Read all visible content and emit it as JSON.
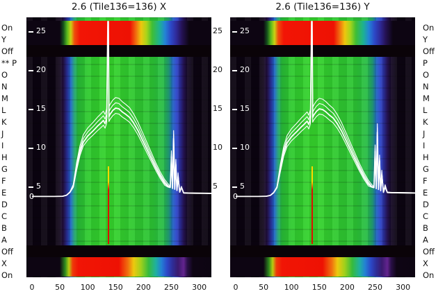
{
  "left_channel_labels": [
    "On",
    "Y",
    "Off",
    "** P",
    "O",
    "N",
    "M",
    "L",
    "K",
    "J",
    "I",
    "H",
    "G",
    "F",
    "E",
    "D",
    "C",
    "B",
    "A",
    "Off",
    "X",
    "On"
  ],
  "right_channel_labels": [
    "On",
    "Y",
    "Off",
    "P",
    "O",
    "N",
    "M",
    "L",
    "K",
    "J",
    "I",
    "H",
    "G",
    "F",
    "E",
    "D",
    "C",
    "B",
    "A",
    "Off",
    "X",
    "On"
  ],
  "y_axis": {
    "ticks": [
      25,
      20,
      15,
      10,
      5
    ],
    "zero": "0"
  },
  "mid_axis_ticks": [
    25,
    20,
    15,
    10,
    5
  ],
  "heatmap_style": {
    "off_color": "#0a0308",
    "background": "#0b0310",
    "curve_color": "#ffffff",
    "marker_line": {
      "x": 137,
      "color_top": "#ffd700",
      "color_bottom": "#dd1000"
    },
    "main_gradient": [
      {
        "p": 0,
        "c": "#0b0310"
      },
      {
        "p": 15,
        "c": "#0b0310"
      },
      {
        "p": 18,
        "c": "#150a1e"
      },
      {
        "p": 20,
        "c": "#221042"
      },
      {
        "p": 22,
        "c": "#2a2f9a"
      },
      {
        "p": 24,
        "c": "#2068c8"
      },
      {
        "p": 26,
        "c": "#20a470"
      },
      {
        "p": 28,
        "c": "#28bb38"
      },
      {
        "p": 33,
        "c": "#2fca2f"
      },
      {
        "p": 45,
        "c": "#36d42c"
      },
      {
        "p": 58,
        "c": "#30c930"
      },
      {
        "p": 68,
        "c": "#2cc434"
      },
      {
        "p": 74,
        "c": "#28bd46"
      },
      {
        "p": 77,
        "c": "#219f78"
      },
      {
        "p": 79,
        "c": "#2166c0"
      },
      {
        "p": 81,
        "c": "#2a46cc"
      },
      {
        "p": 83,
        "c": "#2c2f9e"
      },
      {
        "p": 85,
        "c": "#261356"
      },
      {
        "p": 87,
        "c": "#150926"
      },
      {
        "p": 90,
        "c": "#0c0412"
      },
      {
        "p": 100,
        "c": "#0b0310"
      }
    ],
    "top_gradient": [
      {
        "p": 0,
        "c": "#0d0512"
      },
      {
        "p": 18,
        "c": "#0d0512"
      },
      {
        "p": 20,
        "c": "#14511c"
      },
      {
        "p": 22,
        "c": "#57b81e"
      },
      {
        "p": 24,
        "c": "#c8d414"
      },
      {
        "p": 26,
        "c": "#ef4c0c"
      },
      {
        "p": 29,
        "c": "#f21505"
      },
      {
        "p": 56,
        "c": "#ee1103"
      },
      {
        "p": 59,
        "c": "#f1660e"
      },
      {
        "p": 62,
        "c": "#eec60e"
      },
      {
        "p": 65,
        "c": "#a8d41a"
      },
      {
        "p": 68,
        "c": "#3fbe34"
      },
      {
        "p": 72,
        "c": "#1cb292"
      },
      {
        "p": 75,
        "c": "#2383d6"
      },
      {
        "p": 78,
        "c": "#2c49c8"
      },
      {
        "p": 81,
        "c": "#2f2a9a"
      },
      {
        "p": 84,
        "c": "#251255"
      },
      {
        "p": 88,
        "c": "#0d0512"
      },
      {
        "p": 100,
        "c": "#0d0512"
      }
    ],
    "bottom_gradient": [
      {
        "p": 0,
        "c": "#0d0512"
      },
      {
        "p": 18,
        "c": "#0d0512"
      },
      {
        "p": 21,
        "c": "#2f8c1e"
      },
      {
        "p": 23,
        "c": "#b8cc12"
      },
      {
        "p": 25,
        "c": "#ee3a0a"
      },
      {
        "p": 28,
        "c": "#f11505"
      },
      {
        "p": 50,
        "c": "#ee1103"
      },
      {
        "p": 55,
        "c": "#f0720e"
      },
      {
        "p": 58,
        "c": "#edc90e"
      },
      {
        "p": 62,
        "c": "#9ed01c"
      },
      {
        "p": 66,
        "c": "#37bb3c"
      },
      {
        "p": 70,
        "c": "#1fb0a0"
      },
      {
        "p": 73,
        "c": "#2380d4"
      },
      {
        "p": 76,
        "c": "#2c49c8"
      },
      {
        "p": 79,
        "c": "#2e2d97"
      },
      {
        "p": 82,
        "c": "#3a1a6e"
      },
      {
        "p": 85,
        "c": "#63248e"
      },
      {
        "p": 87,
        "c": "#2a1048"
      },
      {
        "p": 90,
        "c": "#0e0514"
      },
      {
        "p": 100,
        "c": "#0d0512"
      }
    ]
  },
  "chart_data": [
    {
      "type": "heatmap",
      "title": "2.6 (Tile136=136) X",
      "colormap": "rainbow",
      "x_range": [
        0,
        322
      ],
      "x_ticks": [
        0,
        50,
        100,
        150,
        200,
        250,
        300
      ],
      "y_ticks_shown": [
        0,
        5,
        10,
        15,
        20,
        25
      ],
      "row_labels_top_to_bottom": [
        "On",
        "Y",
        "Off",
        "P",
        "O",
        "N",
        "M",
        "L",
        "K",
        "J",
        "I",
        "H",
        "G",
        "F",
        "E",
        "D",
        "C",
        "B",
        "A",
        "Off",
        "X",
        "On"
      ],
      "overlay": {
        "name": "white-profile-curve",
        "color": "#ffffff",
        "x": [
          0,
          40,
          55,
          62,
          68,
          74,
          80,
          86,
          92,
          100,
          110,
          118,
          124,
          128,
          131,
          134,
          136,
          137,
          138,
          140,
          145,
          150,
          156,
          162,
          168,
          175,
          182,
          190,
          198,
          206,
          214,
          222,
          230,
          238,
          244,
          248,
          250,
          252,
          254,
          256,
          258,
          260,
          262,
          265,
          268,
          272,
          280,
          295,
          310,
          322
        ],
        "y": [
          0.2,
          0.2,
          0.3,
          0.8,
          2.2,
          4.8,
          7.4,
          9.4,
          10.7,
          11.5,
          12.2,
          12.8,
          13.2,
          13.5,
          13.1,
          13.8,
          27.0,
          28.0,
          14.0,
          14.3,
          14.8,
          15.1,
          15.0,
          14.6,
          14.3,
          13.9,
          13.2,
          12.2,
          11.0,
          9.8,
          8.6,
          7.4,
          6.3,
          5.4,
          4.9,
          4.6,
          8.8,
          4.1,
          11.2,
          3.7,
          7.8,
          3.1,
          6.2,
          2.3,
          4.6,
          1.9,
          1.8,
          1.75,
          1.7,
          1.65
        ]
      }
    },
    {
      "type": "heatmap",
      "title": "2.6 (Tile136=136) Y",
      "colormap": "rainbow",
      "x_range": [
        0,
        322
      ],
      "x_ticks": [
        0,
        50,
        100,
        150,
        200,
        250,
        300
      ],
      "y_ticks_shown": [
        0,
        5,
        10,
        15,
        20,
        25
      ],
      "row_labels_top_to_bottom": [
        "On",
        "Y",
        "Off",
        "P",
        "O",
        "N",
        "M",
        "L",
        "K",
        "J",
        "I",
        "H",
        "G",
        "F",
        "E",
        "D",
        "C",
        "B",
        "A",
        "Off",
        "X",
        "On"
      ],
      "overlay": {
        "name": "white-profile-curve",
        "color": "#ffffff",
        "x": [
          0,
          40,
          55,
          62,
          68,
          74,
          80,
          86,
          92,
          100,
          110,
          118,
          124,
          128,
          131,
          134,
          136,
          137,
          138,
          140,
          145,
          150,
          156,
          162,
          168,
          175,
          182,
          190,
          198,
          206,
          214,
          222,
          230,
          238,
          244,
          248,
          250,
          252,
          254,
          256,
          258,
          260,
          262,
          265,
          268,
          272,
          280,
          295,
          310,
          322
        ],
        "y": [
          0.2,
          0.2,
          0.3,
          0.7,
          2.0,
          4.5,
          7.2,
          9.3,
          10.6,
          11.4,
          12.1,
          12.7,
          13.1,
          13.4,
          13.0,
          13.7,
          26.5,
          28.0,
          13.9,
          14.2,
          14.7,
          15.0,
          14.9,
          14.6,
          14.2,
          13.8,
          13.1,
          12.1,
          10.9,
          9.7,
          8.5,
          7.3,
          6.2,
          5.3,
          4.8,
          4.5,
          9.5,
          4.0,
          12.0,
          3.6,
          8.3,
          3.0,
          6.5,
          2.2,
          4.8,
          2.1,
          2.0,
          1.95,
          1.9,
          1.85
        ]
      }
    }
  ]
}
